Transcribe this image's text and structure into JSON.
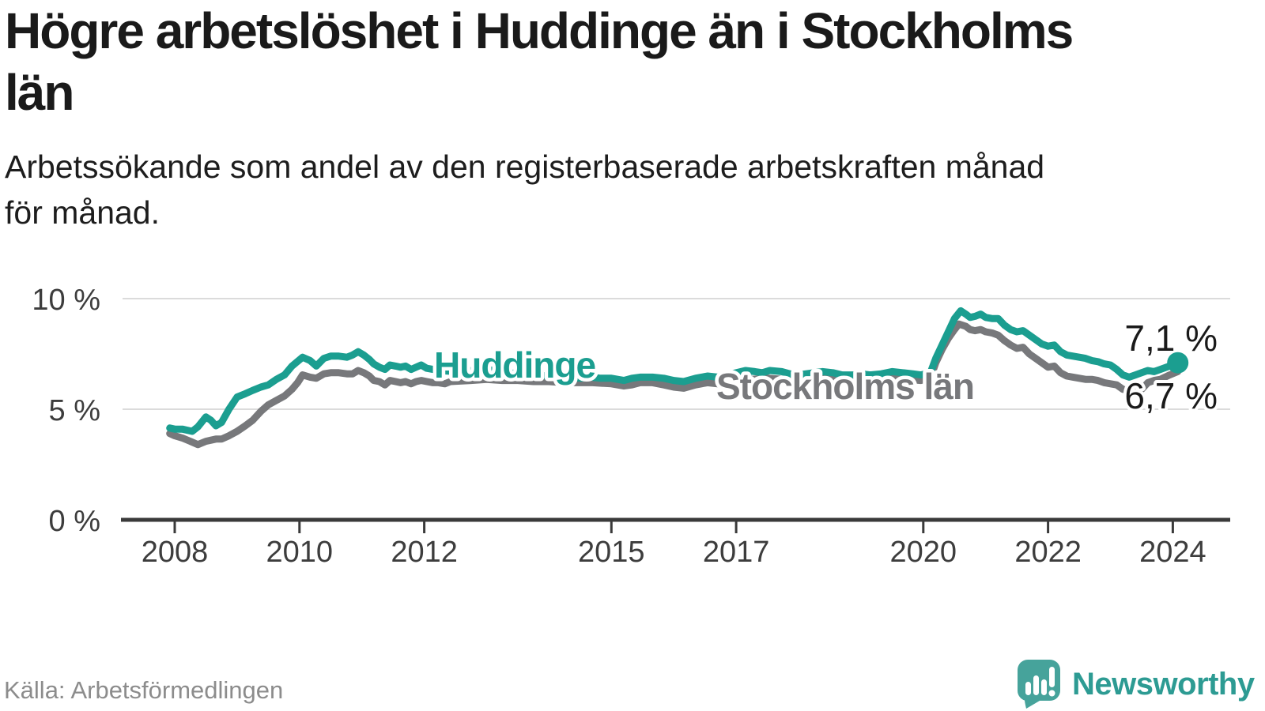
{
  "header": {
    "title": "Högre arbetslöshet i Huddinge än i Stockholms\nlän",
    "subtitle": "Arbetssökande som andel av den registerbaserade arbetskraften månad\nför månad."
  },
  "footer": {
    "source": "Källa: Arbetsförmedlingen",
    "brand": "Newsworthy"
  },
  "colors": {
    "huddinge": "#1b9e90",
    "stockholm": "#77787b",
    "end_label": "#1a1a1a",
    "axis": "#3a3a3a",
    "grid": "#dbdbdb",
    "tick_label": "#3d3d3d",
    "title": "#1a1a1a",
    "subtitle": "#1d1d1d",
    "source": "#8c8c8c",
    "brand": "#2d9b93",
    "brand_icon": "#46a39b"
  },
  "chart_data": {
    "type": "line",
    "unit": "%",
    "title": "Högre arbetslöshet i Huddinge än i Stockholms län",
    "subtitle": "Arbetssökande som andel av den registerbaserade arbetskraften månad för månad.",
    "grid": "horizontal-only",
    "x_range": [
      2007.92,
      2024.08
    ],
    "y_range": [
      0,
      10.7
    ],
    "x_axis": {
      "ticks": [
        {
          "value": 2008,
          "label": "2008"
        },
        {
          "value": 2010,
          "label": "2010"
        },
        {
          "value": 2012,
          "label": "2012"
        },
        {
          "value": 2015,
          "label": "2015"
        },
        {
          "value": 2017,
          "label": "2017"
        },
        {
          "value": 2020,
          "label": "2020"
        },
        {
          "value": 2022,
          "label": "2022"
        },
        {
          "value": 2024,
          "label": "2024"
        }
      ]
    },
    "y_axis": {
      "ticks": [
        {
          "value": 0,
          "label": "0 %"
        },
        {
          "value": 5,
          "label": "5 %"
        },
        {
          "value": 10,
          "label": "10 %"
        }
      ]
    },
    "series": [
      {
        "id": "huddinge",
        "name": "Huddinge",
        "color_key": "huddinge",
        "end_label": "7,1 %",
        "end_dot": true,
        "points": [
          [
            2007.92,
            4.15
          ],
          [
            2008.0,
            4.1
          ],
          [
            2008.12,
            4.1
          ],
          [
            2008.28,
            4.0
          ],
          [
            2008.37,
            4.2
          ],
          [
            2008.5,
            4.65
          ],
          [
            2008.58,
            4.5
          ],
          [
            2008.66,
            4.25
          ],
          [
            2008.75,
            4.4
          ],
          [
            2008.87,
            5.0
          ],
          [
            2009.0,
            5.55
          ],
          [
            2009.13,
            5.7
          ],
          [
            2009.25,
            5.85
          ],
          [
            2009.38,
            6.0
          ],
          [
            2009.5,
            6.1
          ],
          [
            2009.63,
            6.35
          ],
          [
            2009.76,
            6.55
          ],
          [
            2009.88,
            6.95
          ],
          [
            2010.05,
            7.35
          ],
          [
            2010.17,
            7.2
          ],
          [
            2010.27,
            6.95
          ],
          [
            2010.39,
            7.3
          ],
          [
            2010.5,
            7.4
          ],
          [
            2010.63,
            7.4
          ],
          [
            2010.76,
            7.35
          ],
          [
            2010.85,
            7.45
          ],
          [
            2010.94,
            7.6
          ],
          [
            2011.03,
            7.45
          ],
          [
            2011.12,
            7.25
          ],
          [
            2011.19,
            7.05
          ],
          [
            2011.28,
            6.9
          ],
          [
            2011.37,
            6.8
          ],
          [
            2011.45,
            7.0
          ],
          [
            2011.54,
            6.95
          ],
          [
            2011.62,
            6.9
          ],
          [
            2011.7,
            6.95
          ],
          [
            2011.79,
            6.8
          ],
          [
            2011.87,
            6.9
          ],
          [
            2011.95,
            7.0
          ],
          [
            2012.04,
            6.85
          ],
          [
            2012.14,
            6.8
          ],
          [
            2012.23,
            6.75
          ],
          [
            2012.5,
            6.7
          ],
          [
            2012.75,
            6.75
          ],
          [
            2013.0,
            6.8
          ],
          [
            2013.25,
            6.7
          ],
          [
            2013.5,
            6.6
          ],
          [
            2013.75,
            6.55
          ],
          [
            2014.0,
            6.5
          ],
          [
            2014.25,
            6.45
          ],
          [
            2014.5,
            6.4
          ],
          [
            2014.67,
            6.45
          ],
          [
            2014.83,
            6.4
          ],
          [
            2015.0,
            6.4
          ],
          [
            2015.2,
            6.3
          ],
          [
            2015.33,
            6.4
          ],
          [
            2015.46,
            6.45
          ],
          [
            2015.66,
            6.45
          ],
          [
            2015.84,
            6.4
          ],
          [
            2016.0,
            6.3
          ],
          [
            2016.16,
            6.25
          ],
          [
            2016.35,
            6.4
          ],
          [
            2016.54,
            6.5
          ],
          [
            2016.7,
            6.45
          ],
          [
            2016.86,
            6.55
          ],
          [
            2017.0,
            6.65
          ],
          [
            2017.15,
            6.75
          ],
          [
            2017.3,
            6.7
          ],
          [
            2017.42,
            6.65
          ],
          [
            2017.54,
            6.75
          ],
          [
            2017.73,
            6.7
          ],
          [
            2017.86,
            6.6
          ],
          [
            2018.0,
            6.55
          ],
          [
            2018.12,
            6.6
          ],
          [
            2018.25,
            6.65
          ],
          [
            2018.38,
            6.7
          ],
          [
            2018.55,
            6.65
          ],
          [
            2018.7,
            6.55
          ],
          [
            2018.88,
            6.55
          ],
          [
            2019.0,
            6.6
          ],
          [
            2019.15,
            6.55
          ],
          [
            2019.33,
            6.6
          ],
          [
            2019.5,
            6.7
          ],
          [
            2019.67,
            6.65
          ],
          [
            2019.83,
            6.6
          ],
          [
            2019.96,
            6.55
          ],
          [
            2020.04,
            6.6
          ],
          [
            2020.12,
            6.7
          ],
          [
            2020.2,
            7.3
          ],
          [
            2020.3,
            7.9
          ],
          [
            2020.4,
            8.5
          ],
          [
            2020.5,
            9.1
          ],
          [
            2020.6,
            9.45
          ],
          [
            2020.68,
            9.3
          ],
          [
            2020.75,
            9.15
          ],
          [
            2020.83,
            9.2
          ],
          [
            2020.92,
            9.3
          ],
          [
            2021.0,
            9.15
          ],
          [
            2021.1,
            9.1
          ],
          [
            2021.2,
            9.1
          ],
          [
            2021.3,
            8.8
          ],
          [
            2021.4,
            8.6
          ],
          [
            2021.5,
            8.5
          ],
          [
            2021.6,
            8.55
          ],
          [
            2021.7,
            8.35
          ],
          [
            2021.8,
            8.15
          ],
          [
            2021.9,
            7.95
          ],
          [
            2022.0,
            7.85
          ],
          [
            2022.1,
            7.9
          ],
          [
            2022.2,
            7.6
          ],
          [
            2022.3,
            7.45
          ],
          [
            2022.4,
            7.4
          ],
          [
            2022.5,
            7.35
          ],
          [
            2022.6,
            7.3
          ],
          [
            2022.7,
            7.2
          ],
          [
            2022.8,
            7.15
          ],
          [
            2022.9,
            7.05
          ],
          [
            2023.0,
            7.0
          ],
          [
            2023.1,
            6.8
          ],
          [
            2023.2,
            6.55
          ],
          [
            2023.3,
            6.45
          ],
          [
            2023.4,
            6.55
          ],
          [
            2023.5,
            6.65
          ],
          [
            2023.6,
            6.75
          ],
          [
            2023.7,
            6.7
          ],
          [
            2023.8,
            6.8
          ],
          [
            2023.9,
            6.9
          ],
          [
            2024.0,
            7.0
          ],
          [
            2024.08,
            7.1
          ]
        ]
      },
      {
        "id": "stockholm",
        "name": "Stockholms län",
        "color_key": "stockholm",
        "end_label": "6,7 %",
        "end_dot": false,
        "points": [
          [
            2007.92,
            3.9
          ],
          [
            2008.0,
            3.8
          ],
          [
            2008.12,
            3.7
          ],
          [
            2008.25,
            3.55
          ],
          [
            2008.37,
            3.4
          ],
          [
            2008.5,
            3.55
          ],
          [
            2008.58,
            3.6
          ],
          [
            2008.66,
            3.65
          ],
          [
            2008.75,
            3.65
          ],
          [
            2008.87,
            3.8
          ],
          [
            2009.0,
            4.0
          ],
          [
            2009.13,
            4.25
          ],
          [
            2009.25,
            4.5
          ],
          [
            2009.38,
            4.9
          ],
          [
            2009.5,
            5.2
          ],
          [
            2009.63,
            5.4
          ],
          [
            2009.76,
            5.6
          ],
          [
            2009.88,
            5.9
          ],
          [
            2009.97,
            6.2
          ],
          [
            2010.05,
            6.55
          ],
          [
            2010.17,
            6.45
          ],
          [
            2010.27,
            6.4
          ],
          [
            2010.39,
            6.6
          ],
          [
            2010.5,
            6.65
          ],
          [
            2010.63,
            6.65
          ],
          [
            2010.76,
            6.6
          ],
          [
            2010.85,
            6.6
          ],
          [
            2010.94,
            6.75
          ],
          [
            2011.03,
            6.65
          ],
          [
            2011.12,
            6.5
          ],
          [
            2011.19,
            6.3
          ],
          [
            2011.28,
            6.25
          ],
          [
            2011.37,
            6.1
          ],
          [
            2011.45,
            6.3
          ],
          [
            2011.54,
            6.25
          ],
          [
            2011.62,
            6.2
          ],
          [
            2011.7,
            6.25
          ],
          [
            2011.79,
            6.15
          ],
          [
            2011.87,
            6.25
          ],
          [
            2011.95,
            6.3
          ],
          [
            2012.04,
            6.25
          ],
          [
            2012.14,
            6.2
          ],
          [
            2012.23,
            6.2
          ],
          [
            2012.33,
            6.15
          ],
          [
            2012.42,
            6.25
          ],
          [
            2012.75,
            6.3
          ],
          [
            2013.0,
            6.35
          ],
          [
            2013.25,
            6.3
          ],
          [
            2013.5,
            6.3
          ],
          [
            2013.75,
            6.25
          ],
          [
            2014.0,
            6.25
          ],
          [
            2014.25,
            6.2
          ],
          [
            2014.5,
            6.2
          ],
          [
            2014.7,
            6.2
          ],
          [
            2015.0,
            6.15
          ],
          [
            2015.2,
            6.05
          ],
          [
            2015.33,
            6.1
          ],
          [
            2015.46,
            6.2
          ],
          [
            2015.66,
            6.2
          ],
          [
            2015.84,
            6.1
          ],
          [
            2016.0,
            6.0
          ],
          [
            2016.16,
            5.95
          ],
          [
            2016.35,
            6.1
          ],
          [
            2016.54,
            6.2
          ],
          [
            2016.7,
            6.15
          ],
          [
            2016.86,
            6.25
          ],
          [
            2017.0,
            6.3
          ],
          [
            2017.25,
            6.35
          ],
          [
            2017.5,
            6.4
          ],
          [
            2017.75,
            6.35
          ],
          [
            2018.0,
            6.3
          ],
          [
            2018.25,
            6.35
          ],
          [
            2018.5,
            6.4
          ],
          [
            2018.75,
            6.3
          ],
          [
            2019.0,
            6.3
          ],
          [
            2019.25,
            6.35
          ],
          [
            2019.5,
            6.4
          ],
          [
            2019.75,
            6.35
          ],
          [
            2019.96,
            6.3
          ],
          [
            2020.04,
            6.35
          ],
          [
            2020.12,
            6.45
          ],
          [
            2020.2,
            7.1
          ],
          [
            2020.3,
            7.7
          ],
          [
            2020.4,
            8.2
          ],
          [
            2020.5,
            8.6
          ],
          [
            2020.57,
            8.85
          ],
          [
            2020.68,
            8.75
          ],
          [
            2020.75,
            8.6
          ],
          [
            2020.83,
            8.55
          ],
          [
            2020.92,
            8.6
          ],
          [
            2021.0,
            8.5
          ],
          [
            2021.1,
            8.45
          ],
          [
            2021.2,
            8.35
          ],
          [
            2021.3,
            8.1
          ],
          [
            2021.4,
            7.9
          ],
          [
            2021.5,
            7.75
          ],
          [
            2021.6,
            7.8
          ],
          [
            2021.7,
            7.5
          ],
          [
            2021.8,
            7.3
          ],
          [
            2021.9,
            7.1
          ],
          [
            2022.0,
            6.9
          ],
          [
            2022.1,
            6.95
          ],
          [
            2022.2,
            6.65
          ],
          [
            2022.3,
            6.5
          ],
          [
            2022.4,
            6.45
          ],
          [
            2022.5,
            6.4
          ],
          [
            2022.6,
            6.35
          ],
          [
            2022.7,
            6.35
          ],
          [
            2022.8,
            6.3
          ],
          [
            2022.9,
            6.2
          ],
          [
            2023.0,
            6.15
          ],
          [
            2023.1,
            6.1
          ],
          [
            2023.2,
            5.9
          ],
          [
            2023.35,
            5.8
          ],
          [
            2023.5,
            5.9
          ],
          [
            2023.6,
            6.2
          ],
          [
            2023.7,
            6.3
          ],
          [
            2023.8,
            6.35
          ],
          [
            2023.95,
            6.55
          ],
          [
            2024.08,
            6.7
          ]
        ]
      }
    ],
    "legend_position": "inline-labels-on-lines"
  }
}
